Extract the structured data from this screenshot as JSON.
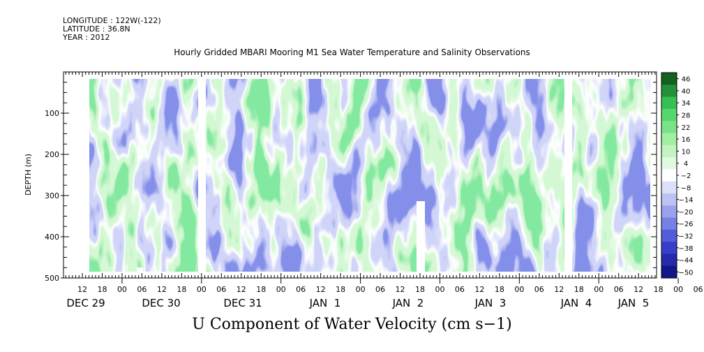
{
  "header": {
    "longitude": "LONGITUDE : 122W(-122)",
    "latitude": "LATITUDE : 36.8N",
    "year": "YEAR : 2012"
  },
  "colors": {
    "neg_strong": "#0a0a78",
    "neg_mid": "#3c46d2",
    "neg_light": "#a0a8f0",
    "neutral": "#ffffff",
    "pos_light": "#a8f0a8",
    "pos_mid": "#3ccf5a",
    "pos_strong": "#0a4a14"
  },
  "chart_data": {
    "type": "heatmap",
    "title": "Hourly Gridded MBARI Mooring M1 Sea Water Temperature and Salinity Observations",
    "xlabel": "U Component of Water Velocity (cm s−1)",
    "ylabel": "DEPTH (m)",
    "ylim": [
      500,
      0
    ],
    "y_ticks": [
      100,
      200,
      300,
      400,
      500
    ],
    "x_hour_ticks": [
      "12",
      "18",
      "00",
      "06",
      "12",
      "18",
      "00",
      "06",
      "12",
      "18",
      "00",
      "06",
      "12",
      "18",
      "00",
      "06",
      "12",
      "18",
      "00",
      "06",
      "12",
      "18",
      "00",
      "06",
      "12",
      "18",
      "00",
      "06",
      "12",
      "18",
      "00",
      "06"
    ],
    "x_day_labels": [
      "DEC 29",
      "DEC 30",
      "DEC 31",
      "JAN  1",
      "JAN  2",
      "JAN  3",
      "JAN  4",
      "JAN  5"
    ],
    "data_gaps": [
      "DEC 30 ~20:00",
      "JAN 4 ~07:00"
    ],
    "colorbar": {
      "min": -50,
      "max": 46,
      "labels": [
        "46",
        "40",
        "34",
        "28",
        "22",
        "16",
        "10",
        "4",
        "−2",
        "−8",
        "−14",
        "−20",
        "−26",
        "−32",
        "−38",
        "−44",
        "−50"
      ]
    },
    "field_note": "Alternating positive (green) and negative (blue) bands of U velocity, mostly between -20 and +20 cm s-1"
  }
}
